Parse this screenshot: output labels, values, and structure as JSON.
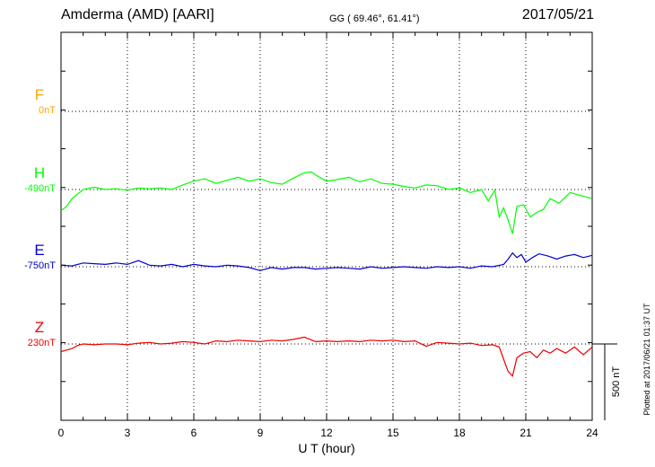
{
  "header": {
    "station": "Amderma (AMD)  [AARI]",
    "coords": "GG ( 69.46°,  61.41°)",
    "date": "2017/05/21"
  },
  "footer": {
    "plotted": "Plotted at 2017/06/21 01:37 UT"
  },
  "chart_data": {
    "type": "line",
    "title": "",
    "xlabel": "U T (hour)",
    "xlim": [
      0,
      24
    ],
    "x_ticks": [
      "0",
      "3",
      "6",
      "9",
      "12",
      "15",
      "18",
      "21",
      "24"
    ],
    "grid": true,
    "scale_bar": {
      "label": "500 nT",
      "value_nT": 500
    },
    "series": [
      {
        "name": "F",
        "baseline": "0nT",
        "color": "#ffa500",
        "x": [],
        "values": []
      },
      {
        "name": "H",
        "baseline": "-490nT",
        "color": "#00ff00",
        "x": [
          0,
          0.25,
          0.5,
          0.75,
          1,
          1.5,
          2,
          2.5,
          3,
          3.5,
          4,
          4.5,
          5,
          5.5,
          6,
          6.5,
          7,
          7.5,
          8,
          8.5,
          9,
          9.5,
          10,
          10.5,
          11,
          11.3,
          11.5,
          12,
          12.5,
          13,
          13.5,
          14,
          14.5,
          15,
          15.5,
          16,
          16.5,
          17,
          17.5,
          18,
          18.5,
          19,
          19.3,
          19.6,
          19.8,
          20.0,
          20.2,
          20.4,
          20.6,
          20.9,
          21.2,
          21.5,
          21.8,
          22.1,
          22.5,
          23,
          23.5,
          24
        ],
        "values": [
          -140,
          -110,
          -60,
          -30,
          0,
          15,
          0,
          5,
          -5,
          10,
          5,
          10,
          0,
          30,
          55,
          70,
          40,
          60,
          80,
          55,
          70,
          45,
          35,
          75,
          110,
          115,
          95,
          55,
          65,
          80,
          50,
          70,
          40,
          35,
          20,
          10,
          30,
          25,
          0,
          10,
          -20,
          0,
          -75,
          -5,
          -180,
          -120,
          -200,
          -290,
          -110,
          -100,
          -180,
          -150,
          -130,
          -60,
          -90,
          -20,
          -40,
          -60
        ]
      },
      {
        "name": "E",
        "baseline": "-750nT",
        "color": "#0000cc",
        "x": [
          0,
          0.5,
          1,
          1.5,
          2,
          2.5,
          3,
          3.5,
          4,
          4.5,
          5,
          5.5,
          6,
          6.5,
          7,
          7.5,
          8,
          8.5,
          9,
          9.5,
          10,
          10.5,
          11,
          11.5,
          12,
          12.5,
          13,
          13.5,
          14,
          14.5,
          15,
          15.5,
          16,
          16.5,
          17,
          17.5,
          18,
          18.5,
          19,
          19.5,
          20,
          20.2,
          20.4,
          20.6,
          20.8,
          21.0,
          21.3,
          21.6,
          22,
          22.4,
          22.8,
          23.2,
          23.6,
          24
        ],
        "values": [
          10,
          5,
          25,
          20,
          15,
          25,
          15,
          40,
          10,
          5,
          15,
          0,
          15,
          5,
          0,
          10,
          5,
          -5,
          -25,
          -5,
          -15,
          -5,
          -5,
          -15,
          -10,
          -5,
          -10,
          -15,
          0,
          -10,
          -5,
          0,
          -5,
          -10,
          0,
          -5,
          0,
          -10,
          5,
          0,
          15,
          50,
          90,
          60,
          80,
          30,
          60,
          85,
          70,
          50,
          70,
          80,
          60,
          75
        ]
      },
      {
        "name": "Z",
        "baseline": "230nT",
        "color": "#ee0000",
        "x": [
          0,
          0.25,
          0.5,
          0.75,
          1,
          1.5,
          2,
          2.5,
          3,
          3.5,
          4,
          4.5,
          5,
          5.5,
          6,
          6.5,
          7,
          7.5,
          8,
          8.5,
          9,
          9.5,
          10,
          10.5,
          11,
          11.5,
          12,
          12.5,
          13,
          13.5,
          14,
          14.5,
          15,
          15.5,
          16,
          16.5,
          17,
          17.5,
          18,
          18.5,
          19,
          19.5,
          19.8,
          20.0,
          20.2,
          20.4,
          20.6,
          20.9,
          21.2,
          21.5,
          21.8,
          22.1,
          22.4,
          22.8,
          23.2,
          23.6,
          24
        ],
        "values": [
          -50,
          -40,
          -30,
          -10,
          0,
          -5,
          0,
          0,
          -5,
          5,
          10,
          0,
          5,
          15,
          10,
          0,
          20,
          15,
          25,
          20,
          15,
          25,
          20,
          30,
          45,
          15,
          20,
          15,
          20,
          15,
          25,
          20,
          25,
          15,
          20,
          -15,
          10,
          5,
          0,
          5,
          -10,
          -5,
          -20,
          -100,
          -180,
          -210,
          -90,
          -60,
          -50,
          -90,
          -40,
          -60,
          -30,
          -60,
          -20,
          -70,
          -20
        ]
      }
    ]
  }
}
